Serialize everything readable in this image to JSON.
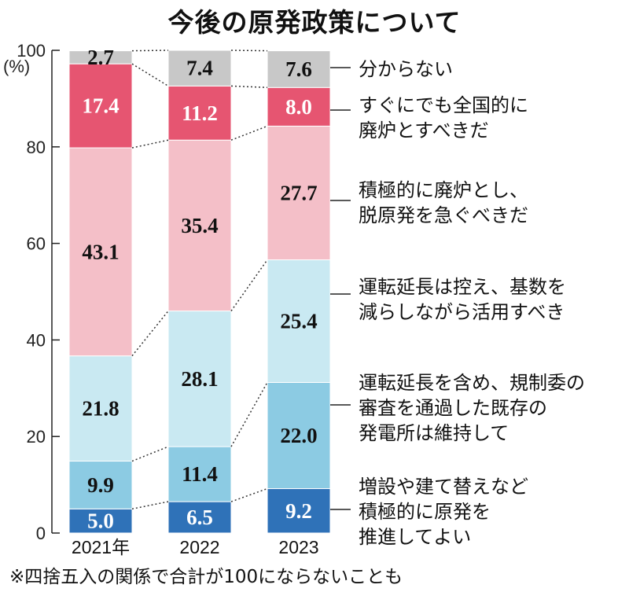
{
  "chart_data": {
    "type": "bar",
    "stacked": true,
    "title": "今後の原発政策について",
    "ylabel": "(%)",
    "ylim": [
      0,
      100
    ],
    "yticks": [
      "0",
      "20",
      "40",
      "60",
      "80",
      "100"
    ],
    "categories": [
      "2021年",
      "2022",
      "2023"
    ],
    "series": [
      {
        "name": "増設や建て替えなど積極的に原発を推進してよい",
        "values": [
          5.0,
          6.5,
          9.2
        ],
        "labels": [
          "5.0",
          "6.5",
          "9.2"
        ],
        "color": "#2f72b8",
        "label_color": "#ffffff"
      },
      {
        "name": "運転延長を含め、規制委の審査を通過した既存の発電所は維持して",
        "values": [
          9.9,
          11.4,
          22.0
        ],
        "labels": [
          "9.9",
          "11.4",
          "22.0"
        ],
        "color": "#8ccbe3",
        "label_color": "#111111"
      },
      {
        "name": "運転延長は控え、基数を減らしながら活用すべき",
        "values": [
          21.8,
          28.1,
          25.4
        ],
        "labels": [
          "21.8",
          "28.1",
          "25.4"
        ],
        "color": "#c9e9f2",
        "label_color": "#111111"
      },
      {
        "name": "積極的に廃炉とし、脱原発を急ぐべきだ",
        "values": [
          43.1,
          35.4,
          27.7
        ],
        "labels": [
          "43.1",
          "35.4",
          "27.7"
        ],
        "color": "#f4bfc8",
        "label_color": "#111111"
      },
      {
        "name": "すぐにでも全国的に廃炉とすべきだ",
        "values": [
          17.4,
          11.2,
          8.0
        ],
        "labels": [
          "17.4",
          "11.2",
          "8.0"
        ],
        "color": "#e65571",
        "label_color": "#ffffff"
      },
      {
        "name": "分からない",
        "values": [
          2.7,
          7.4,
          7.6
        ],
        "labels": [
          "2.7",
          "7.4",
          "7.6"
        ],
        "color": "#c8c8c8",
        "label_color": "#111111"
      }
    ],
    "legend": [
      {
        "lines": [
          "分からない"
        ]
      },
      {
        "lines": [
          "すぐにでも全国的に",
          "廃炉とすべきだ"
        ]
      },
      {
        "lines": [
          "積極的に廃炉とし、",
          "脱原発を急ぐべきだ"
        ]
      },
      {
        "lines": [
          "運転延長は控え、基数を",
          "減らしながら活用すべき"
        ]
      },
      {
        "lines": [
          "運転延長を含め、規制委の",
          "審査を通過した既存の",
          "発電所は維持して"
        ]
      },
      {
        "lines": [
          "増設や建て替えなど",
          "積極的に原発を",
          "推進してよい"
        ]
      }
    ],
    "legend_placement": "right",
    "grid": false
  },
  "footnote": "※四捨五入の関係で合計が100にならないことも"
}
